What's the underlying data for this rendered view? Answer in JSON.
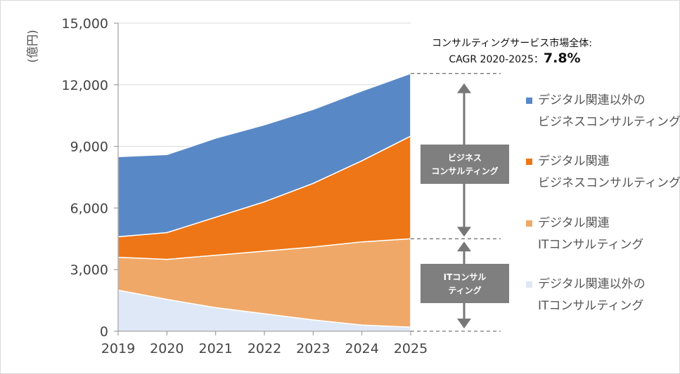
{
  "chart_data": {
    "type": "area",
    "stacked": true,
    "x": [
      "2019",
      "2020",
      "2021",
      "2022",
      "2023",
      "2024",
      "2025"
    ],
    "ylabel": "(億円)",
    "ylim": [
      0,
      15000
    ],
    "yticks": [
      "0",
      "3,000",
      "6,000",
      "9,000",
      "12,000",
      "15,000"
    ],
    "ytick_values": [
      0,
      3000,
      6000,
      9000,
      12000,
      15000
    ],
    "grid": true,
    "legend_position": "right",
    "series": [
      {
        "name_lines": [
          "デジタル関連以外の",
          "ITコンサルティング"
        ],
        "color": "#dfe8f6",
        "values": [
          2000,
          1550,
          1150,
          850,
          550,
          300,
          200
        ]
      },
      {
        "name_lines": [
          "デジタル関連",
          "ITコンサルティング"
        ],
        "color": "#f0a868",
        "values": [
          1600,
          1950,
          2550,
          3050,
          3550,
          4050,
          4300
        ]
      },
      {
        "name_lines": [
          "デジタル関連",
          "ビジネスコンサルティング"
        ],
        "color": "#ee7616",
        "values": [
          1000,
          1300,
          1850,
          2400,
          3100,
          3950,
          5000
        ]
      },
      {
        "name_lines": [
          "デジタル関連以外の",
          "ビジネスコンサルティング"
        ],
        "color": "#5988c6",
        "values": [
          3900,
          3800,
          3850,
          3750,
          3600,
          3400,
          3050
        ]
      }
    ],
    "annotations": {
      "cagr_line1": "コンサルティングサービス市場全体:",
      "cagr_line2": "CAGR 2020-2025：",
      "cagr_value": "7.8%",
      "business_label_lines": [
        "ビジネス",
        "コンサルティング"
      ],
      "it_label_lines": [
        "ITコンサル",
        "ティング"
      ]
    }
  }
}
